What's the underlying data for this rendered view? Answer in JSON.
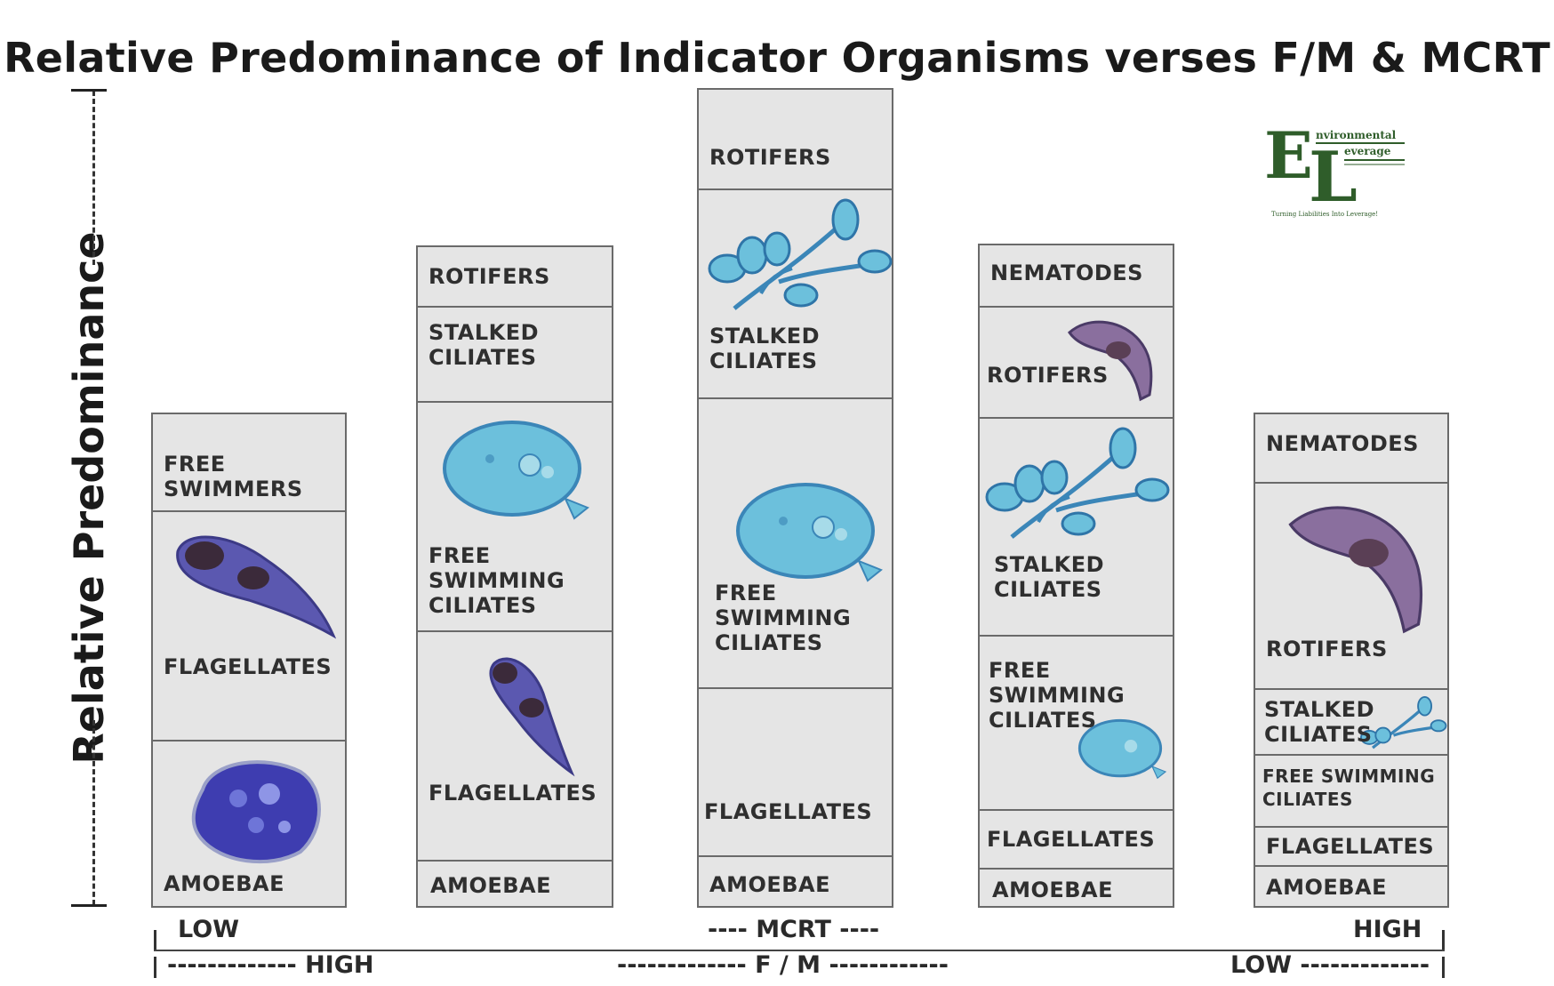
{
  "title": "Relative Predominance of Indicator Organisms verses F/M & MCRT",
  "y_axis_label": "Relative Predominance",
  "columns": [
    {
      "cells": [
        {
          "label": "FREE\nSWIMMERS"
        },
        {
          "label": "FLAGELLATES",
          "organism": "flagellate-icon"
        },
        {
          "label": "AMOEBAE",
          "organism": "amoeba-icon"
        }
      ]
    },
    {
      "cells": [
        {
          "label": "ROTIFERS"
        },
        {
          "label": "STALKED\nCILIATES"
        },
        {
          "label": "FREE\nSWIMMING\nCILIATES",
          "organism": "free-swimming-ciliate-icon"
        },
        {
          "label": "FLAGELLATES",
          "organism": "flagellate-icon"
        },
        {
          "label": "AMOEBAE"
        }
      ]
    },
    {
      "cells": [
        {
          "label": "ROTIFERS"
        },
        {
          "label": "STALKED\nCILIATES",
          "organism": "stalked-ciliate-icon"
        },
        {
          "label": "FREE\nSWIMMING\nCILIATES",
          "organism": "free-swimming-ciliate-icon"
        },
        {
          "label": "FLAGELLATES"
        },
        {
          "label": "AMOEBAE"
        }
      ]
    },
    {
      "cells": [
        {
          "label": "NEMATODES"
        },
        {
          "label": "ROTIFERS",
          "organism": "rotifer-icon"
        },
        {
          "label": "STALKED\nCILIATES",
          "organism": "stalked-ciliate-icon"
        },
        {
          "label": "FREE\nSWIMMING\nCILIATES",
          "organism": "free-swimming-ciliate-icon"
        },
        {
          "label": "FLAGELLATES"
        },
        {
          "label": "AMOEBAE"
        }
      ]
    },
    {
      "cells": [
        {
          "label": "NEMATODES"
        },
        {
          "label": "ROTIFERS",
          "organism": "rotifer-icon"
        },
        {
          "label": "STALKED\nCILIATES",
          "organism": "stalked-ciliate-icon"
        },
        {
          "label": "FREE SWIMMING\nCILIATES"
        },
        {
          "label": "FLAGELLATES"
        },
        {
          "label": "AMOEBAE"
        }
      ]
    }
  ],
  "mcrt_axis": {
    "left": "LOW",
    "center": "---- MCRT ----",
    "right": "HIGH"
  },
  "fm_axis": {
    "left": "------------- HIGH",
    "center": "------------- F / M ------------",
    "right": "LOW -------------"
  },
  "logo": {
    "letters": "EL",
    "line1": "nvironmental",
    "line2": "everage",
    "tagline": "Turning Liabilities Into Leverage!"
  },
  "colors": {
    "cell_bg": "#e5e5e5",
    "border": "#6a6a6a",
    "ciliate_blue": "#4aa3d9",
    "protozoa_purple": "#4a3f9a",
    "logo_green": "#2f5d2a"
  }
}
